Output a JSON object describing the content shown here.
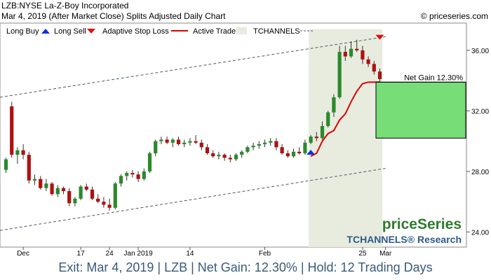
{
  "header": {
    "title": "LZB:NYSE La-Z-Boy Incorporated",
    "subtitle": "Mar 4, 2019 (After Market Close)  Splits Adjusted Daily Chart",
    "copyright": "© priceseries.com"
  },
  "legend": {
    "long_buy": "Long Buy",
    "long_sell": "Long Sell",
    "adaptive_stop": "Adaptive Stop Loss",
    "active_trade": "Active Trade",
    "tchannels": "TCHANNELS"
  },
  "net_gain_label": "Net Gain 12.30%",
  "watermark": {
    "brand": "priceSeries",
    "research": "TCHANNELS® Research"
  },
  "footer": "Exit: Mar 4, 2019 | LZB | Net Gain: 12.30% | Hold: 12 Trading Days",
  "colors": {
    "up": "#2a8a2a",
    "down": "#b01010",
    "stop": "#e00000",
    "trade_bg": "#e8ecdf",
    "gain_box": "#77dd77",
    "channel": "#4a5a6a",
    "buy_arrow": "#1030e0",
    "sell_arrow": "#e01010",
    "footer_text": "#3a5a78"
  },
  "chart_data": {
    "type": "candlestick",
    "y_ticks": [
      36.0,
      32.0,
      28.0,
      24.0
    ],
    "ylim": [
      23.0,
      37.8
    ],
    "x_ticks": [
      {
        "label": "Dec",
        "index": 3
      },
      {
        "label": "17",
        "index": 13
      },
      {
        "label": "24",
        "index": 18
      },
      {
        "label": "Jan 2019",
        "index": 23
      },
      {
        "label": "14",
        "index": 32
      },
      {
        "label": "Feb",
        "index": 45
      },
      {
        "label": "25",
        "index": 62
      },
      {
        "label": "Mar",
        "index": 66
      }
    ],
    "ohlc": [
      [
        28.1,
        28.9,
        27.9,
        28.8
      ],
      [
        32.3,
        32.6,
        28.9,
        29.1
      ],
      [
        29.1,
        29.6,
        28.5,
        29.4
      ],
      [
        29.4,
        29.8,
        28.8,
        29.1
      ],
      [
        29.1,
        29.3,
        27.2,
        27.4
      ],
      [
        27.4,
        27.8,
        27.1,
        27.5
      ],
      [
        27.5,
        27.7,
        26.8,
        26.9
      ],
      [
        26.9,
        27.5,
        26.7,
        27.2
      ],
      [
        27.2,
        27.3,
        26.4,
        26.5
      ],
      [
        26.5,
        27.1,
        26.3,
        26.9
      ],
      [
        26.9,
        27.0,
        26.5,
        26.7
      ],
      [
        26.7,
        26.9,
        25.7,
        25.9
      ],
      [
        25.9,
        26.3,
        25.7,
        26.2
      ],
      [
        26.2,
        27.1,
        26.1,
        27.0
      ],
      [
        27.0,
        27.2,
        26.7,
        26.8
      ],
      [
        26.8,
        27.0,
        26.1,
        26.2
      ],
      [
        26.2,
        26.5,
        25.9,
        26.0
      ],
      [
        26.0,
        26.3,
        25.6,
        25.8
      ],
      [
        25.8,
        26.2,
        25.4,
        25.6
      ],
      [
        25.6,
        27.3,
        25.5,
        27.2
      ],
      [
        27.2,
        27.8,
        27.0,
        27.7
      ],
      [
        27.7,
        28.0,
        27.4,
        27.9
      ],
      [
        27.9,
        28.1,
        27.6,
        27.8
      ],
      [
        27.8,
        28.0,
        27.3,
        27.5
      ],
      [
        27.5,
        28.2,
        27.4,
        28.0
      ],
      [
        28.0,
        29.3,
        27.9,
        29.2
      ],
      [
        29.2,
        30.1,
        29.0,
        30.0
      ],
      [
        30.0,
        30.3,
        29.8,
        30.1
      ],
      [
        30.1,
        30.3,
        29.8,
        29.9
      ],
      [
        29.9,
        30.2,
        29.6,
        30.1
      ],
      [
        30.1,
        30.3,
        29.7,
        29.8
      ],
      [
        29.8,
        30.1,
        29.6,
        29.9
      ],
      [
        29.9,
        30.2,
        29.7,
        30.0
      ],
      [
        30.0,
        30.4,
        29.8,
        29.9
      ],
      [
        29.9,
        30.1,
        29.4,
        29.6
      ],
      [
        29.6,
        29.8,
        29.1,
        29.2
      ],
      [
        29.2,
        29.4,
        28.9,
        29.0
      ],
      [
        29.0,
        29.3,
        28.8,
        29.1
      ],
      [
        29.1,
        29.2,
        28.7,
        28.9
      ],
      [
        28.9,
        29.1,
        28.6,
        28.8
      ],
      [
        28.8,
        29.2,
        28.7,
        29.1
      ],
      [
        29.1,
        29.4,
        28.9,
        29.3
      ],
      [
        29.3,
        29.7,
        29.2,
        29.6
      ],
      [
        29.6,
        29.9,
        29.4,
        29.7
      ],
      [
        29.7,
        30.0,
        29.5,
        29.8
      ],
      [
        29.8,
        30.1,
        29.6,
        29.9
      ],
      [
        29.9,
        30.2,
        29.7,
        30.0
      ],
      [
        30.0,
        30.2,
        29.4,
        29.6
      ],
      [
        29.6,
        29.8,
        29.1,
        29.2
      ],
      [
        29.2,
        29.4,
        28.9,
        29.0
      ],
      [
        29.0,
        29.5,
        28.9,
        29.3
      ],
      [
        29.3,
        29.6,
        29.1,
        29.2
      ],
      [
        29.2,
        30.1,
        29.1,
        29.9
      ],
      [
        29.9,
        30.4,
        29.8,
        30.3
      ],
      [
        30.3,
        30.6,
        30.0,
        30.2
      ],
      [
        30.2,
        31.3,
        30.1,
        31.0
      ],
      [
        31.0,
        32.0,
        30.9,
        31.9
      ],
      [
        31.9,
        33.1,
        31.6,
        32.9
      ],
      [
        32.9,
        36.3,
        32.8,
        35.9
      ],
      [
        35.9,
        36.3,
        35.3,
        35.6
      ],
      [
        35.6,
        36.6,
        35.5,
        36.1
      ],
      [
        36.1,
        36.7,
        35.9,
        36.0
      ],
      [
        36.0,
        36.3,
        35.1,
        35.4
      ],
      [
        35.4,
        35.6,
        34.9,
        35.1
      ],
      [
        35.1,
        35.3,
        34.4,
        34.6
      ],
      [
        34.6,
        34.8,
        33.9,
        34.1
      ]
    ],
    "trade_start_index": 53,
    "trade_end_index": 65,
    "buy_index": 53,
    "sell_index": 65,
    "stop_loss": [
      {
        "index": 53,
        "value": 29.0
      },
      {
        "index": 54,
        "value": 29.2
      },
      {
        "index": 55,
        "value": 30.0
      },
      {
        "index": 56,
        "value": 30.5
      },
      {
        "index": 57,
        "value": 30.7
      },
      {
        "index": 58,
        "value": 31.4
      },
      {
        "index": 59,
        "value": 31.8
      },
      {
        "index": 60,
        "value": 32.6
      },
      {
        "index": 61,
        "value": 33.3
      },
      {
        "index": 62,
        "value": 33.8
      },
      {
        "index": 63,
        "value": 33.9
      },
      {
        "index": 64,
        "value": 33.9
      },
      {
        "index": 65,
        "value": 33.9
      }
    ],
    "channel_upper": [
      {
        "index": 0,
        "value": 32.9
      },
      {
        "index": 66,
        "value": 36.9
      }
    ],
    "channel_lower": [
      {
        "index": 0,
        "value": 24.1
      },
      {
        "index": 66,
        "value": 28.2
      }
    ],
    "net_gain_range": [
      30.2,
      33.9
    ]
  }
}
